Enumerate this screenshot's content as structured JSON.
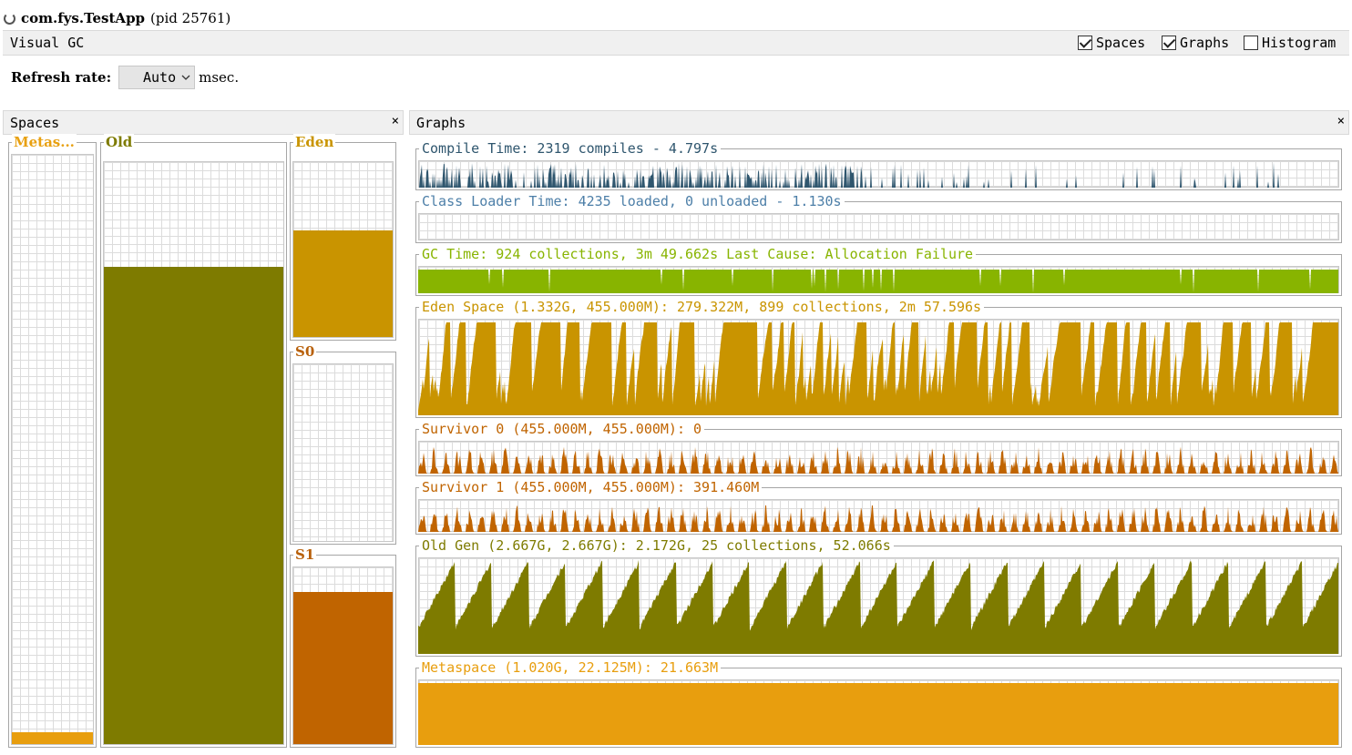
{
  "window": {
    "app": "com.fys.TestApp",
    "pid": "(pid 25761)"
  },
  "toolbar": {
    "name": "Visual GC",
    "checks": [
      {
        "label": "Spaces",
        "checked": true
      },
      {
        "label": "Graphs",
        "checked": true
      },
      {
        "label": "Histogram",
        "checked": false
      }
    ]
  },
  "refresh": {
    "label": "Refresh rate:",
    "value": "Auto",
    "unit": "msec."
  },
  "spaces_panel": {
    "title": "Spaces",
    "close": "×",
    "spaces": [
      {
        "label": "Metas...",
        "fill_fraction": 0.02,
        "color": "#e89e0e",
        "label_color": "#e8a010"
      },
      {
        "label": "Old",
        "fill_fraction": 0.82,
        "color": "#7e7b00",
        "label_color": "#7e7b00"
      },
      {
        "label": "Eden",
        "fill_fraction": 0.61,
        "color": "#c99400",
        "label_color": "#c99400"
      },
      {
        "label": "S0",
        "fill_fraction": 0.0,
        "color": "#c06400",
        "label_color": "#b8600a"
      },
      {
        "label": "S1",
        "fill_fraction": 0.86,
        "color": "#c06400",
        "label_color": "#b8600a"
      }
    ]
  },
  "graphs_panel": {
    "title": "Graphs",
    "close": "×",
    "graphs": [
      {
        "label": "Compile Time: 2319 compiles - 4.797s",
        "color": "#2f566e",
        "kind": "spikes"
      },
      {
        "label": "Class Loader Time: 4235 loaded, 0 unloaded - 1.130s",
        "color": "#4d7fa8",
        "kind": "empty"
      },
      {
        "label": "GC Time: 924 collections, 3m 49.662s  Last Cause: Allocation Failure",
        "color": "#88b400",
        "kind": "gc"
      },
      {
        "label": "Eden Space (1.332G, 455.000M): 279.322M, 899 collections, 2m 57.596s",
        "color": "#c99400",
        "kind": "eden"
      },
      {
        "label": "Survivor 0 (455.000M, 455.000M): 0",
        "color": "#c06400",
        "kind": "surv"
      },
      {
        "label": "Survivor 1 (455.000M, 455.000M): 391.460M",
        "color": "#c06400",
        "kind": "surv"
      },
      {
        "label": "Old Gen (2.667G, 2.667G): 2.172G, 25 collections, 52.066s",
        "color": "#7e7b00",
        "kind": "saw",
        "cycles": 25
      },
      {
        "label": "Metaspace (1.020G, 22.125M): 21.663M",
        "color": "#e89e0e",
        "kind": "flat"
      }
    ]
  }
}
